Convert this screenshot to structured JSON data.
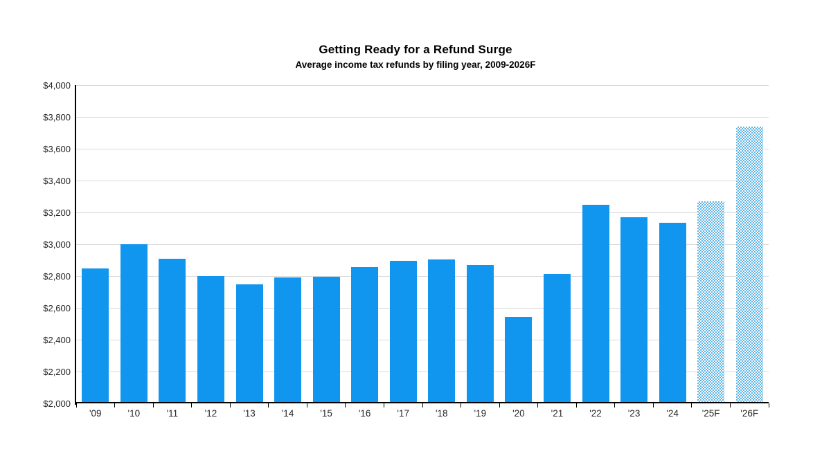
{
  "chart_data": {
    "type": "bar",
    "title": "Getting Ready for a Refund Surge",
    "subtitle": "Average income tax refunds by filing year, 2009-2026F",
    "categories": [
      "'09",
      "'10",
      "'11",
      "'12",
      "'13",
      "'14",
      "'15",
      "'16",
      "'17",
      "'18",
      "'19",
      "'20",
      "'21",
      "'22",
      "'23",
      "'24",
      "'25F",
      "'26F"
    ],
    "values": [
      2850,
      3000,
      2910,
      2800,
      2750,
      2790,
      2795,
      2855,
      2895,
      2905,
      2870,
      2545,
      2815,
      3250,
      3170,
      3135,
      3270,
      3740
    ],
    "forecast": [
      false,
      false,
      false,
      false,
      false,
      false,
      false,
      false,
      false,
      false,
      false,
      false,
      false,
      false,
      false,
      false,
      true,
      true
    ],
    "xlabel": "",
    "ylabel": "",
    "ylim": [
      2000,
      4000
    ],
    "ytick_step": 200,
    "y_tick_labels": [
      "$2,000",
      "$2,200",
      "$2,400",
      "$2,600",
      "$2,800",
      "$3,000",
      "$3,200",
      "$3,400",
      "$3,600",
      "$3,800",
      "$4,000"
    ],
    "grid": "horizontal",
    "legend": "none",
    "colors": {
      "bar_solid": "#1196f0",
      "bar_forecast_pattern": "#5cb3e6",
      "gridline": "#d9d9d9",
      "axis": "#000000",
      "tick_label": "#262626",
      "title_text": "#000000",
      "background": "#ffffff"
    }
  }
}
